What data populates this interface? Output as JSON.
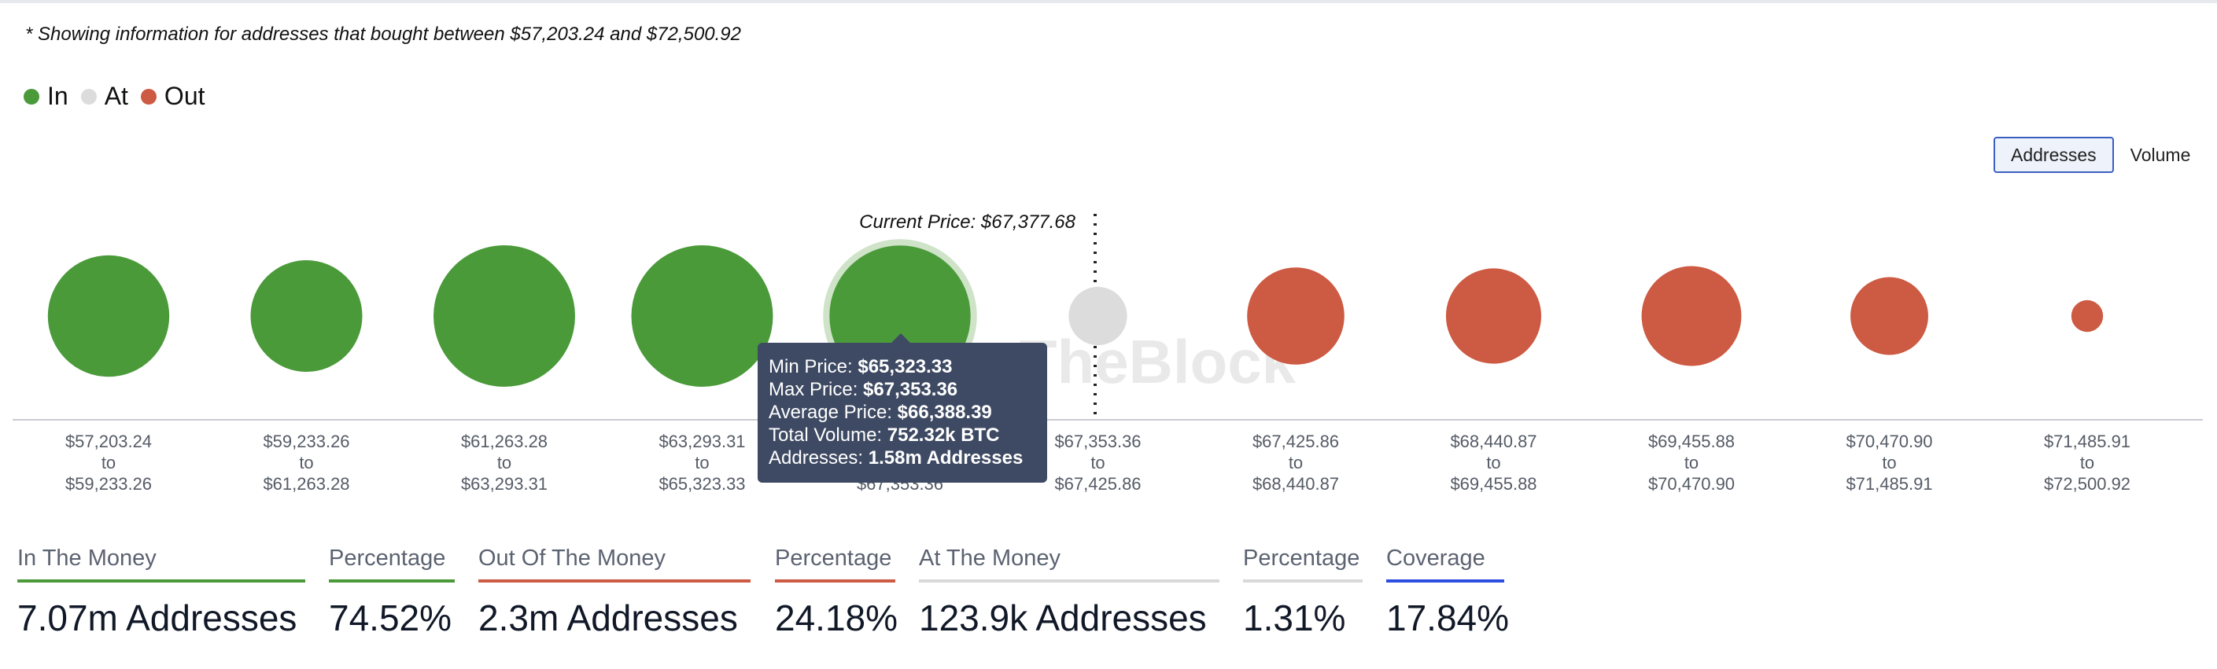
{
  "note": "* Showing information for addresses that bought between $57,203.24 and $72,500.92",
  "legend": [
    {
      "label": "In",
      "color": "#4a9a3a"
    },
    {
      "label": "At",
      "color": "#dcdcdc"
    },
    {
      "label": "Out",
      "color": "#cd5a42"
    }
  ],
  "toggle": {
    "addresses": "Addresses",
    "volume": "Volume",
    "active": "Addresses"
  },
  "watermark": "IntoTheBlock",
  "chart_data": {
    "type": "bubble",
    "current_price_label": "Current Price: $67,377.68",
    "current_price": 67377.68,
    "size_metric": "Addresses",
    "bins": [
      {
        "min": "$57,203.24",
        "max": "$59,233.26",
        "status": "in"
      },
      {
        "min": "$59,233.26",
        "max": "$61,263.28",
        "status": "in"
      },
      {
        "min": "$61,263.28",
        "max": "$63,293.31",
        "status": "in"
      },
      {
        "min": "$63,293.31",
        "max": "$65,323.33",
        "status": "in"
      },
      {
        "min": "$65,323.33",
        "max": "$67,353.36",
        "status": "in",
        "addresses_m": 1.58,
        "highlighted": true
      },
      {
        "min": "$67,353.36",
        "max": "$67,425.86",
        "status": "at"
      },
      {
        "min": "$67,425.86",
        "max": "$68,440.87",
        "status": "out"
      },
      {
        "min": "$68,440.87",
        "max": "$69,455.88",
        "status": "out"
      },
      {
        "min": "$69,455.88",
        "max": "$70,470.90",
        "status": "out"
      },
      {
        "min": "$70,470.90",
        "max": "$71,485.91",
        "status": "out"
      },
      {
        "min": "$71,485.91",
        "max": "$72,500.92",
        "status": "out"
      }
    ],
    "relative_size": [
      1.17,
      0.99,
      1.59,
      1.59,
      1.58,
      0.27,
      0.75,
      0.72,
      0.79,
      0.48,
      0.08
    ],
    "range_connector": "to"
  },
  "tooltip": {
    "min_label": "Min Price:",
    "min_value": "$65,323.33",
    "max_label": "Max Price:",
    "max_value": "$67,353.36",
    "avg_label": "Average Price:",
    "avg_value": "$66,388.39",
    "vol_label": "Total Volume:",
    "vol_value": "752.32k BTC",
    "addr_label": "Addresses:",
    "addr_value": "1.58m Addresses"
  },
  "stats": [
    {
      "label": "In The Money",
      "value": "7.07m Addresses",
      "color": "#4a9a3a"
    },
    {
      "label": "Percentage",
      "value": "74.52%",
      "color": "#4a9a3a"
    },
    {
      "label": "Out Of The Money",
      "value": "2.3m Addresses",
      "color": "#cd5a42"
    },
    {
      "label": "Percentage",
      "value": "24.18%",
      "color": "#cd5a42"
    },
    {
      "label": "At The Money",
      "value": "123.9k Addresses",
      "color": "#d9d9d9"
    },
    {
      "label": "Percentage",
      "value": "1.31%",
      "color": "#d9d9d9"
    },
    {
      "label": "Coverage",
      "value": "17.84%",
      "color": "#2c4fe0"
    }
  ]
}
